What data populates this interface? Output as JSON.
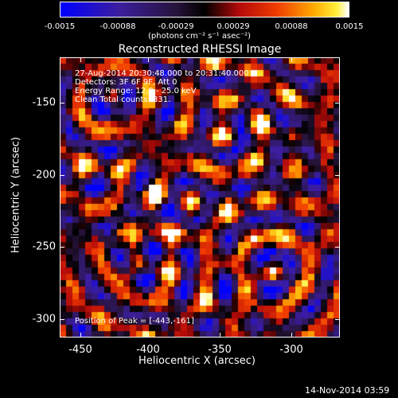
{
  "colorbar": {
    "ticks": [
      "-0.0015",
      "-0.00088",
      "-0.00029",
      "0.00029",
      "0.00088",
      "0.0015"
    ],
    "unit_label": "(photons cm⁻² s⁻¹ asec⁻²)",
    "range": [
      -0.0015,
      0.0015
    ]
  },
  "plot": {
    "title": "Reconstructed RHESSI Image",
    "annotations": [
      "27-Aug-2014 20:30:48.000 to 20:31:40.000",
      "Detectors: 3F 6F 9F, Att 0",
      "Energy Range: 12.0 - 25.0 keV",
      "Clean     Total counts: 331."
    ],
    "peak_label": "Position of Peak = [-443,-161]",
    "xlabel": "Heliocentric X (arcsec)",
    "ylabel": "Heliocentric Y (arcsec)",
    "xticks": [
      "-450",
      "-400",
      "-350",
      "-300"
    ],
    "yticks": [
      "-150",
      "-200",
      "-250",
      "-300"
    ],
    "xrange": [
      -465,
      -275
    ],
    "yrange": [
      -315,
      -125
    ]
  },
  "footer": {
    "date": "14-Nov-2014 03:59"
  },
  "colors": {
    "background": "#000000",
    "foreground": "#ffffff"
  }
}
